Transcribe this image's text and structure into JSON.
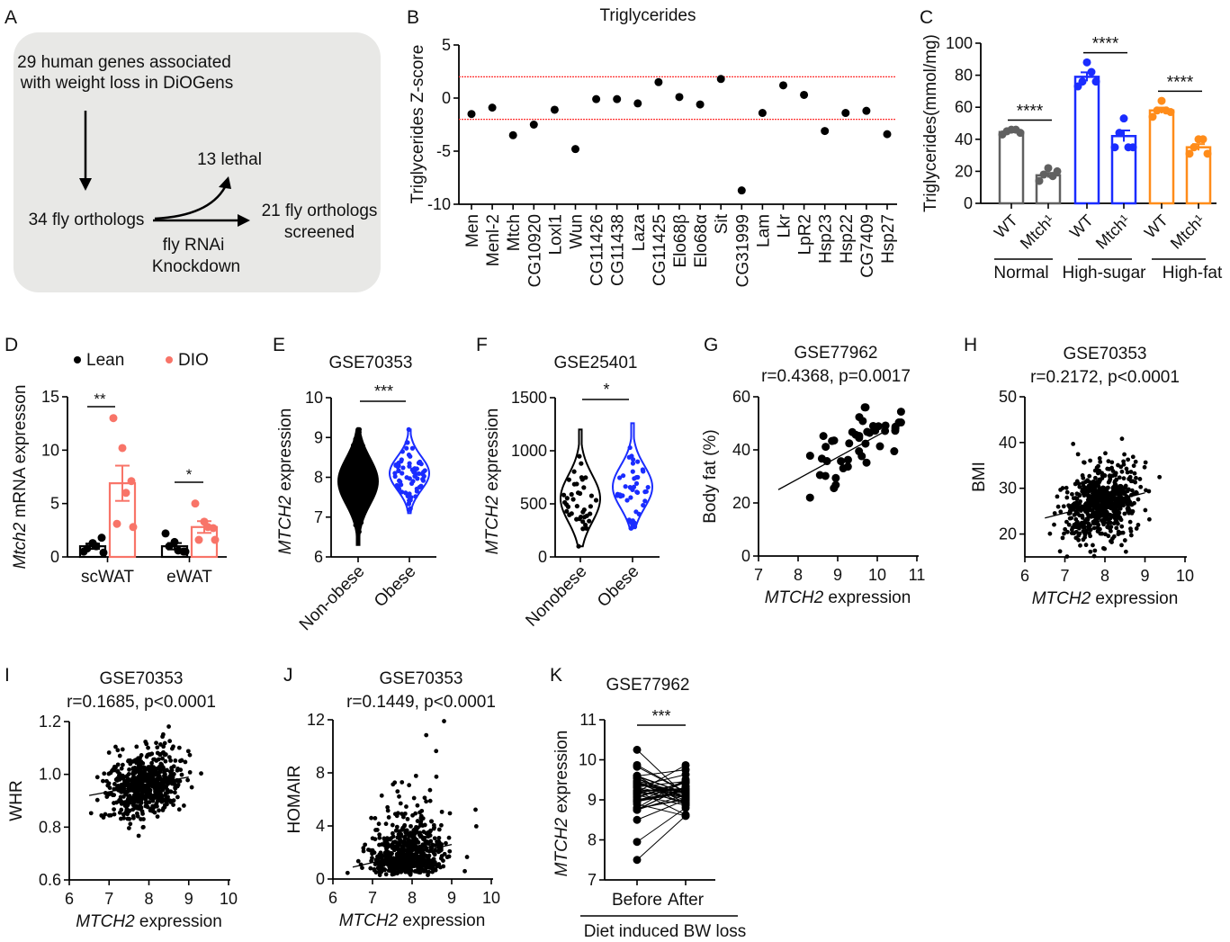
{
  "panel_labels": [
    "A",
    "B",
    "C",
    "D",
    "E",
    "F",
    "G",
    "H",
    "I",
    "J",
    "K"
  ],
  "colors": {
    "black": "#000000",
    "grey": "#606060",
    "blue": "#1a2cff",
    "orange": "#ff8c1a",
    "salmon": "#f87468",
    "threshold_red": "#ff3030",
    "panel_a_bg": "#e8e8e6"
  },
  "panel_a": {
    "line1": "29 human genes associated",
    "line2": "with weight loss in DiOGens",
    "lethal": "13 lethal",
    "orthologs": "34 fly orthologs",
    "screened1": "21 fly orthologs",
    "screened2": "screened",
    "rnai1": "fly RNAi",
    "rnai2": "Knockdown"
  },
  "chart_data": [
    {
      "type": "scatter",
      "title": "Triglycerides",
      "ylabel": "Triglycerides Z-score",
      "ylim": [
        -10,
        5
      ],
      "yticks": [
        "5",
        "0",
        "-5",
        "-10"
      ],
      "threshold_lines": [
        2,
        -2
      ],
      "categories": [
        "Men",
        "Menl-2",
        "Mtch",
        "CG10920",
        "Loxl1",
        "Wun",
        "CG11426",
        "CG11438",
        "Laza",
        "CG11425",
        "Elo68β",
        "Elo68α",
        "Sit",
        "CG31999",
        "Lam",
        "Lkr",
        "LpR2",
        "Hsp23",
        "Hsp22",
        "CG7409",
        "Hsp27"
      ],
      "values": [
        -1.5,
        -0.9,
        -3.5,
        -2.5,
        -1.1,
        -4.8,
        -0.1,
        -0.1,
        -0.5,
        1.5,
        0.1,
        -0.6,
        1.8,
        -8.7,
        -1.4,
        1.2,
        0.3,
        -3.1,
        -1.4,
        -1.2,
        -3.4
      ]
    },
    {
      "type": "bar",
      "ylabel": "Triglycerides(mmol/mg)",
      "ylim": [
        0,
        100
      ],
      "yticks": [
        "0",
        "20",
        "40",
        "60",
        "80",
        "100"
      ],
      "groups": [
        {
          "name": "Normal",
          "color": "#606060",
          "sig": "****",
          "bars": [
            {
              "label": "WT",
              "mean": 44.5,
              "sem": 0.8,
              "points": [
                43,
                45,
                46,
                46,
                44
              ]
            },
            {
              "label": "Mtch¹",
              "mean": 17.5,
              "sem": 1.5,
              "points": [
                14,
                18,
                22,
                17,
                20
              ]
            }
          ]
        },
        {
          "name": "High-sugar",
          "color": "#1a2cff",
          "sig": "****",
          "bars": [
            {
              "label": "WT",
              "mean": 79,
              "sem": 2.8,
              "points": [
                73,
                76,
                88,
                82,
                76
              ]
            },
            {
              "label": "Mtch¹",
              "mean": 42,
              "sem": 3.5,
              "points": [
                35,
                44,
                53,
                35,
                35
              ]
            }
          ]
        },
        {
          "name": "High-fat",
          "color": "#ff8c1a",
          "sig": "****",
          "bars": [
            {
              "label": "WT",
              "mean": 58,
              "sem": 1.8,
              "points": [
                54,
                58,
                64,
                58,
                57
              ]
            },
            {
              "label": "Mtch¹",
              "mean": 35,
              "sem": 2.0,
              "points": [
                31,
                35,
                40,
                40,
                31
              ]
            }
          ]
        }
      ]
    },
    {
      "type": "bar",
      "ylabel_gene": "Mtch2",
      "ylabel_rest": " mRNA expresson",
      "ylim": [
        0,
        15
      ],
      "yticks": [
        "0",
        "5",
        "10",
        "15"
      ],
      "legend": [
        {
          "name": "Lean",
          "color": "#000000"
        },
        {
          "name": "DIO",
          "color": "#f87468"
        }
      ],
      "categories": [
        "scWAT",
        "eWAT"
      ],
      "sig": [
        "**",
        "*"
      ],
      "series": [
        {
          "name": "Lean",
          "means": [
            1.0,
            1.0
          ],
          "sems": [
            0.25,
            0.3
          ],
          "points": [
            [
              0.5,
              1.3,
              1.8,
              1.0,
              0.8,
              0.4
            ],
            [
              2.2,
              1.4,
              0.5,
              0.6,
              1.0,
              0.5
            ]
          ]
        },
        {
          "name": "DIO",
          "means": [
            6.9,
            2.8
          ],
          "sems": [
            1.65,
            0.55
          ],
          "points": [
            [
              13,
              10.2,
              7.1,
              6.0,
              3.1,
              2.8
            ],
            [
              5.0,
              3.3,
              2.7,
              2.8,
              1.6,
              1.6
            ]
          ]
        }
      ]
    },
    {
      "type": "violin",
      "title": "GSE70353",
      "ylabel_gene": "MTCH2",
      "ylabel_rest": " expression",
      "ylim": [
        6,
        10
      ],
      "yticks": [
        "6",
        "7",
        "8",
        "9",
        "10"
      ],
      "categories": [
        "Non-obese",
        "Obese"
      ],
      "sig": "***",
      "groups": [
        {
          "min": 6.3,
          "max": 9.2,
          "median": 7.9,
          "color": "#000000"
        },
        {
          "min": 7.1,
          "max": 9.2,
          "median": 8.1,
          "color": "#1a2cff"
        }
      ]
    },
    {
      "type": "violin",
      "title": "GSE25401",
      "ylabel_gene": "MTCH2",
      "ylabel_rest": " expression",
      "ylim": [
        0,
        1500
      ],
      "yticks": [
        "0",
        "500",
        "1000",
        "1500"
      ],
      "categories": [
        "Nonobese",
        "Obese"
      ],
      "sig": "*",
      "groups": [
        {
          "min": 100,
          "max": 1200,
          "median": 550,
          "color": "#000000"
        },
        {
          "min": 270,
          "max": 1260,
          "median": 660,
          "color": "#1a2cff"
        }
      ]
    },
    {
      "type": "scatter",
      "title": "GSE77962",
      "stats": "r=0.4368, p=0.0017",
      "xlabel_gene": "MTCH2",
      "xlabel_rest": " expression",
      "ylabel": "Body fat (%)",
      "xlim": [
        7,
        11
      ],
      "ylim": [
        0,
        60
      ],
      "xticks": [
        "7",
        "8",
        "9",
        "10",
        "11"
      ],
      "yticks": [
        "0",
        "20",
        "40",
        "60"
      ],
      "trend_line": [
        [
          7.5,
          25
        ],
        [
          10.2,
          47
        ]
      ]
    },
    {
      "type": "scatter",
      "title": "GSE70353",
      "stats": "r=0.2172, p<0.0001",
      "xlabel_gene": "MTCH2",
      "xlabel_rest": " expression",
      "ylabel": "BMI",
      "xlim": [
        6,
        10
      ],
      "ylim": [
        15,
        50
      ],
      "xticks": [
        "6",
        "7",
        "8",
        "9",
        "10"
      ],
      "yticks": [
        "20",
        "30",
        "40",
        "50"
      ],
      "trend_line": [
        [
          6.5,
          23.5
        ],
        [
          9.0,
          29
        ]
      ]
    },
    {
      "type": "scatter",
      "title": "GSE70353",
      "stats": "r=0.1685, p<0.0001",
      "xlabel_gene": "MTCH2",
      "xlabel_rest": " expression",
      "ylabel": "WHR",
      "xlim": [
        6,
        10
      ],
      "ylim": [
        0.6,
        1.2
      ],
      "xticks": [
        "6",
        "7",
        "8",
        "9",
        "10"
      ],
      "yticks": [
        "0.6",
        "0.8",
        "1.0",
        "1.2"
      ],
      "trend_line": [
        [
          6.5,
          0.92
        ],
        [
          9.0,
          0.99
        ]
      ]
    },
    {
      "type": "scatter",
      "title": "GSE70353",
      "stats": "r=0.1449, p<0.0001",
      "xlabel_gene": "MTCH2",
      "xlabel_rest": " expression",
      "ylabel": "HOMAIR",
      "xlim": [
        6,
        10
      ],
      "ylim": [
        0,
        12
      ],
      "xticks": [
        "6",
        "7",
        "8",
        "9",
        "10"
      ],
      "yticks": [
        "0",
        "4",
        "8",
        "12"
      ],
      "trend_line": [
        [
          6.5,
          0.9
        ],
        [
          9.0,
          2.6
        ]
      ]
    },
    {
      "type": "line",
      "title": "GSE77962",
      "ylabel_gene": "MTCH2",
      "ylabel_rest": " expression",
      "ylim": [
        7,
        11
      ],
      "yticks": [
        "7",
        "8",
        "9",
        "10",
        "11"
      ],
      "categories": [
        "Before",
        "After"
      ],
      "group_label": "Diet induced BW loss",
      "sig": "***",
      "before_range": [
        7.5,
        10.25
      ],
      "after_range": [
        8.55,
        9.9
      ]
    }
  ]
}
